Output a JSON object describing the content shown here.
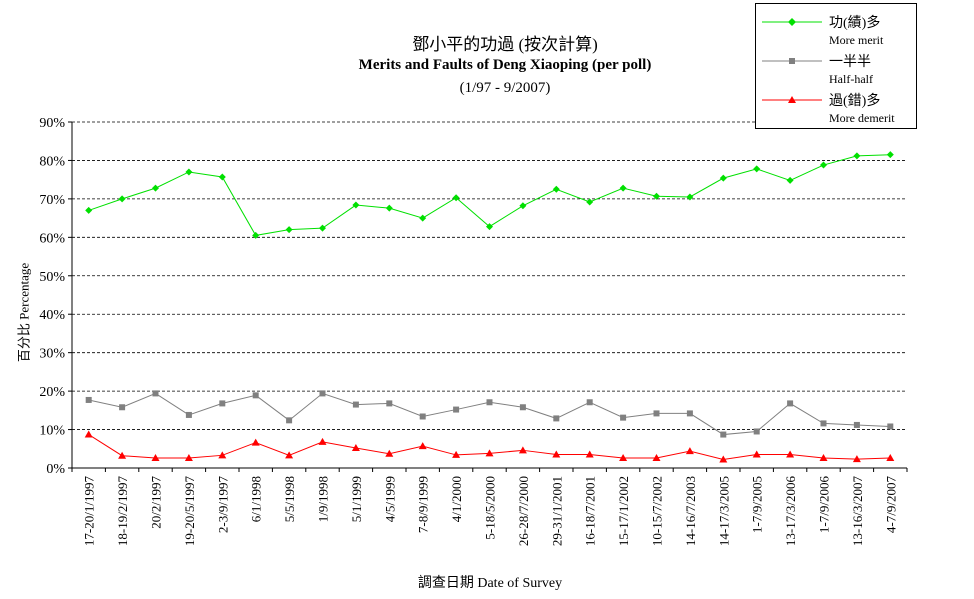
{
  "chart_data": {
    "type": "line",
    "title": "鄧小平的功過 (按次計算)",
    "subtitle": "Merits and Faults of Deng Xiaoping (per poll)",
    "period": "(1/97 - 9/2007)",
    "xlabel": "調查日期 Date of Survey",
    "ylabel": "百分比 Percentage",
    "ylim": [
      0,
      90
    ],
    "yticks": [
      "0%",
      "10%",
      "20%",
      "30%",
      "40%",
      "50%",
      "60%",
      "70%",
      "80%",
      "90%"
    ],
    "grid": "horizontal dashed",
    "legend_position": "top-right",
    "categories": [
      "17-20/1/1997",
      "18-19/2/1997",
      "20/2/1997",
      "19-20/5/1997",
      "2-3/9/1997",
      "6/1/1998",
      "5/5/1998",
      "1/9/1998",
      "5/1/1999",
      "4/5/1999",
      "7-8/9/1999",
      "4/1/2000",
      "5-18/5/2000",
      "26-28/7/2000",
      "29-31/1/2001",
      "16-18/7/2001",
      "15-17/1/2002",
      "10-15/7/2002",
      "14-16/7/2003",
      "14-17/3/2005",
      "1-7/9/2005",
      "13-17/3/2006",
      "1-7/9/2006",
      "13-16/3/2007",
      "4-7/9/2007"
    ],
    "series": [
      {
        "name": "功(績)多",
        "name_en": "More merit",
        "color": "#00e000",
        "marker": "diamond",
        "values": [
          67,
          70,
          72.8,
          77,
          75.7,
          60.5,
          62,
          62.4,
          68.4,
          67.6,
          65,
          70.3,
          62.8,
          68.2,
          72.5,
          69.2,
          72.8,
          70.7,
          70.5,
          75.4,
          77.8,
          74.8,
          78.8,
          81.2,
          81.5
        ]
      },
      {
        "name": "一半半",
        "name_en": "Half-half",
        "color": "#808080",
        "marker": "square",
        "values": [
          17.7,
          15.8,
          19.4,
          13.8,
          16.8,
          18.9,
          12.4,
          19.4,
          16.5,
          16.8,
          13.4,
          15.2,
          17.1,
          15.8,
          12.9,
          17.1,
          13.1,
          14.2,
          14.2,
          8.7,
          9.5,
          16.8,
          11.6,
          11.2,
          10.8
        ]
      },
      {
        "name": "過(錯)多",
        "name_en": "More demerit",
        "color": "#ff0000",
        "marker": "triangle",
        "values": [
          8.7,
          3.2,
          2.6,
          2.6,
          3.3,
          6.6,
          3.3,
          6.8,
          5.2,
          3.7,
          5.7,
          3.4,
          3.8,
          4.6,
          3.5,
          3.5,
          2.6,
          2.6,
          4.4,
          2.2,
          3.5,
          3.5,
          2.6,
          2.3,
          2.6
        ]
      }
    ]
  }
}
